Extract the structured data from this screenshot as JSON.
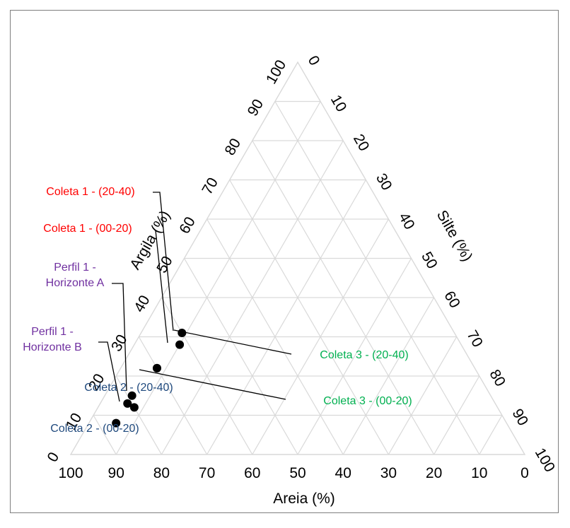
{
  "chart_data": {
    "type": "scatter",
    "subtype": "ternary",
    "title": "",
    "axes": {
      "bottom": {
        "label": "Areia (%)",
        "ticks": [
          "100",
          "90",
          "80",
          "70",
          "60",
          "50",
          "40",
          "30",
          "20",
          "10",
          "0"
        ]
      },
      "left": {
        "label": "Argila (%)",
        "ticks": [
          "0",
          "10",
          "20",
          "30",
          "40",
          "50",
          "60",
          "70",
          "80",
          "90",
          "100"
        ]
      },
      "right": {
        "label": "Silte (%)",
        "ticks": [
          "0",
          "10",
          "20",
          "30",
          "40",
          "50",
          "60",
          "70",
          "80",
          "90",
          "100"
        ]
      }
    },
    "grid": true,
    "range": [
      0,
      100
    ],
    "points": [
      {
        "label": "Coleta 1 - (20-40)",
        "color": "#ff0000",
        "areia": 60,
        "silte": 9,
        "argila": 31
      },
      {
        "label": "Coleta 1 - (00-20)",
        "color": "#ff0000",
        "areia": 62,
        "silte": 10,
        "argila": 28
      },
      {
        "label": "Coleta 3 - (20-40)",
        "color": "#00b050",
        "areia": 70,
        "silte": 8,
        "argila": 22
      },
      {
        "label": "Coleta 3 - (00-20)",
        "color": "#00b050",
        "areia": 70,
        "silte": 8,
        "argila": 22
      },
      {
        "label": "Perfil 1 - Horizonte A",
        "color": "#7030a0",
        "areia": 79,
        "silte": 6,
        "argila": 15
      },
      {
        "label": "Perfil 1 - Horizonte B",
        "color": "#7030a0",
        "areia": 81,
        "silte": 6,
        "argila": 13
      },
      {
        "label": "Coleta 2 - (20-40)",
        "color": "#1f497d",
        "areia": 80,
        "silte": 8,
        "argila": 12
      },
      {
        "label": "Coleta 2 - (00-20)",
        "color": "#1f497d",
        "areia": 86,
        "silte": 6,
        "argila": 8
      }
    ]
  }
}
